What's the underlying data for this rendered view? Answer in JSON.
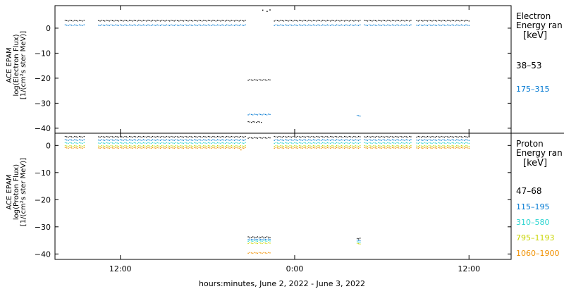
{
  "xaxis": {
    "label": "hours:minutes, June  2, 2022 - June  3, 2022",
    "ticks": [
      {
        "t": 12,
        "label": "12:00"
      },
      {
        "t": 24,
        "label": "0:00"
      },
      {
        "t": 36,
        "label": "12:00"
      }
    ]
  },
  "chart_data": [
    {
      "type": "scatter",
      "ylabel": [
        "ACE EPAM",
        "log(Electron Flux)",
        "[1/(cm²s ster MeV)]"
      ],
      "ylim": [
        -42,
        9
      ],
      "yticks": [
        0,
        -10,
        -20,
        -30,
        -40
      ],
      "ytick_labels": [
        "0",
        "−10",
        "−20",
        "−30",
        "−40"
      ],
      "xlim": [
        7.5,
        38.9
      ],
      "x_unit": "hours since 0:00 June 2, 2022",
      "legend": {
        "title": [
          "Electron",
          "Energy ran",
          "[keV]"
        ],
        "placement": "right"
      },
      "series": [
        {
          "name": "38–53",
          "color": "#000000",
          "segments": [
            {
              "x": [
                8.2,
                9.5
              ],
              "y": 3.0
            },
            {
              "x": [
                10.5,
                20.6
              ],
              "y": 3.0
            },
            {
              "x": [
                22.6,
                28.5
              ],
              "y": 3.0
            },
            {
              "x": [
                28.8,
                32.0
              ],
              "y": 3.0
            },
            {
              "x": [
                32.4,
                36.0
              ],
              "y": 3.0
            },
            {
              "x": [
                20.8,
                22.3
              ],
              "y": -20.7
            },
            {
              "x": [
                20.8,
                21.7
              ],
              "y": -37.5
            }
          ],
          "points": [
            {
              "x": 21.8,
              "y": 7.2
            },
            {
              "x": 22.1,
              "y": 6.7
            },
            {
              "x": 22.3,
              "y": 7.3
            }
          ]
        },
        {
          "name": "175–315",
          "color": "#0078d2",
          "segments": [
            {
              "x": [
                8.2,
                9.5
              ],
              "y": 1.2
            },
            {
              "x": [
                10.5,
                20.6
              ],
              "y": 1.2
            },
            {
              "x": [
                22.6,
                28.5
              ],
              "y": 1.2
            },
            {
              "x": [
                28.8,
                32.0
              ],
              "y": 1.2
            },
            {
              "x": [
                32.4,
                36.0
              ],
              "y": 1.2
            },
            {
              "x": [
                20.8,
                22.3
              ],
              "y": -34.5
            },
            {
              "x": [
                28.3,
                28.5
              ],
              "y": -35.0
            }
          ],
          "points": []
        }
      ]
    },
    {
      "type": "scatter",
      "ylabel": [
        "ACE EPAM",
        "log(Proton Flux)",
        "[1/(cm²s ster MeV)]"
      ],
      "ylim": [
        -42,
        4.5
      ],
      "yticks": [
        0,
        -10,
        -20,
        -30,
        -40
      ],
      "ytick_labels": [
        "0",
        "−10",
        "−20",
        "−30",
        "−40"
      ],
      "xlim": [
        7.5,
        38.9
      ],
      "x_unit": "hours since 0:00 June 2, 2022",
      "legend": {
        "title": [
          "Proton",
          "Energy ran",
          "[keV]"
        ],
        "placement": "right"
      },
      "series": [
        {
          "name": "47–68",
          "color": "#000000",
          "segments": [
            {
              "x": [
                8.2,
                9.5
              ],
              "y": 3.2
            },
            {
              "x": [
                10.5,
                20.6
              ],
              "y": 3.2
            },
            {
              "x": [
                20.8,
                22.3
              ],
              "y": 2.8
            },
            {
              "x": [
                22.6,
                28.5
              ],
              "y": 3.2
            },
            {
              "x": [
                28.8,
                32.0
              ],
              "y": 3.2
            },
            {
              "x": [
                32.4,
                36.0
              ],
              "y": 3.2
            },
            {
              "x": [
                20.8,
                22.3
              ],
              "y": -33.8
            },
            {
              "x": [
                28.3,
                28.5
              ],
              "y": -34.3
            }
          ],
          "points": []
        },
        {
          "name": "115–195",
          "color": "#0078d2",
          "segments": [
            {
              "x": [
                8.2,
                9.5
              ],
              "y": 2.0
            },
            {
              "x": [
                10.5,
                20.6
              ],
              "y": 2.0
            },
            {
              "x": [
                22.6,
                28.5
              ],
              "y": 2.0
            },
            {
              "x": [
                28.8,
                32.0
              ],
              "y": 2.0
            },
            {
              "x": [
                32.4,
                36.0
              ],
              "y": 2.0
            },
            {
              "x": [
                20.8,
                22.3
              ],
              "y": -34.6
            },
            {
              "x": [
                28.3,
                28.5
              ],
              "y": -35.0
            }
          ],
          "points": []
        },
        {
          "name": "310–580",
          "color": "#2ad4d0",
          "segments": [
            {
              "x": [
                8.2,
                9.5
              ],
              "y": 0.9
            },
            {
              "x": [
                10.5,
                20.6
              ],
              "y": 0.9
            },
            {
              "x": [
                22.6,
                28.5
              ],
              "y": 0.9
            },
            {
              "x": [
                28.8,
                32.0
              ],
              "y": 0.9
            },
            {
              "x": [
                32.4,
                36.0
              ],
              "y": 0.9
            },
            {
              "x": [
                20.8,
                22.3
              ],
              "y": -35.2
            },
            {
              "x": [
                28.3,
                28.5
              ],
              "y": -35.6
            }
          ],
          "points": []
        },
        {
          "name": "795–1193",
          "color": "#c8d400",
          "segments": [
            {
              "x": [
                8.2,
                9.5
              ],
              "y": -0.2
            },
            {
              "x": [
                10.5,
                20.6
              ],
              "y": -0.2
            },
            {
              "x": [
                22.6,
                28.5
              ],
              "y": -0.2
            },
            {
              "x": [
                28.8,
                32.0
              ],
              "y": -0.2
            },
            {
              "x": [
                32.4,
                36.0
              ],
              "y": -0.2
            },
            {
              "x": [
                20.8,
                22.3
              ],
              "y": -36.0
            },
            {
              "x": [
                28.3,
                28.5
              ],
              "y": -36.2
            }
          ],
          "points": []
        },
        {
          "name": "1060–1900",
          "color": "#f09000",
          "segments": [
            {
              "x": [
                8.2,
                9.5
              ],
              "y": -0.9
            },
            {
              "x": [
                10.5,
                20.6
              ],
              "y": -0.9
            },
            {
              "x": [
                22.6,
                28.5
              ],
              "y": -0.9
            },
            {
              "x": [
                28.8,
                32.0
              ],
              "y": -0.9
            },
            {
              "x": [
                32.4,
                36.0
              ],
              "y": -0.9
            },
            {
              "x": [
                20.8,
                22.3
              ],
              "y": -39.6
            }
          ],
          "points": [
            {
              "x": 20.3,
              "y": -1.6
            }
          ]
        }
      ]
    }
  ]
}
